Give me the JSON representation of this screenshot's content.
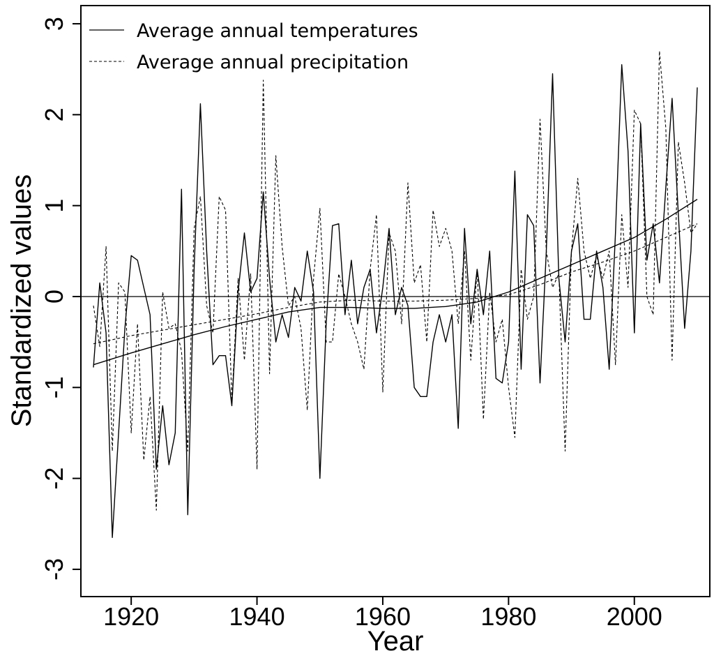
{
  "chart_data": {
    "type": "line",
    "xlabel": "Year",
    "ylabel": "Standardized values",
    "xlim": [
      1912,
      2012
    ],
    "ylim": [
      -3.3,
      3.2
    ],
    "x_ticks": [
      1920,
      1940,
      1960,
      1980,
      2000
    ],
    "x_tick_labels": [
      "1920",
      "1940",
      "1960",
      "1980",
      "2000"
    ],
    "y_ticks": [
      -3,
      -2,
      -1,
      0,
      1,
      2,
      3
    ],
    "y_tick_labels": [
      "-3",
      "-2",
      "-1",
      "0",
      "1",
      "2",
      "3"
    ],
    "y_tick_label_orientation": "vertical",
    "reference_line_y": 0,
    "grid": false,
    "legend": {
      "placement": "top-left",
      "entries": [
        {
          "label": "Average annual temperatures",
          "style": "solid"
        },
        {
          "label": "Average annual precipitation",
          "style": "dashed"
        }
      ]
    },
    "colors": {
      "line": "#000000",
      "background": "#ffffff"
    },
    "series": [
      {
        "name": "Average annual temperatures",
        "style": "solid",
        "x": [
          1914,
          1915,
          1916,
          1917,
          1918,
          1919,
          1920,
          1921,
          1922,
          1923,
          1924,
          1925,
          1926,
          1927,
          1928,
          1929,
          1930,
          1931,
          1932,
          1933,
          1934,
          1935,
          1936,
          1937,
          1938,
          1939,
          1940,
          1941,
          1942,
          1943,
          1944,
          1945,
          1946,
          1947,
          1948,
          1949,
          1950,
          1951,
          1952,
          1953,
          1954,
          1955,
          1956,
          1957,
          1958,
          1959,
          1960,
          1961,
          1962,
          1963,
          1964,
          1965,
          1966,
          1967,
          1968,
          1969,
          1970,
          1971,
          1972,
          1973,
          1974,
          1975,
          1976,
          1977,
          1978,
          1979,
          1980,
          1981,
          1982,
          1983,
          1984,
          1985,
          1986,
          1987,
          1988,
          1989,
          1990,
          1991,
          1992,
          1993,
          1994,
          1995,
          1996,
          1997,
          1998,
          1999,
          2000,
          2001,
          2002,
          2003,
          2004,
          2005,
          2006,
          2007,
          2008,
          2009,
          2010
        ],
        "y": [
          -0.78,
          0.15,
          -0.4,
          -2.65,
          -1.5,
          -0.35,
          0.45,
          0.4,
          0.1,
          -0.2,
          -1.9,
          -1.2,
          -1.85,
          -1.5,
          1.18,
          -2.4,
          0.3,
          2.12,
          0.5,
          -0.75,
          -0.65,
          -0.65,
          -1.2,
          0.05,
          0.7,
          0.05,
          0.2,
          1.15,
          0.2,
          -0.5,
          -0.2,
          -0.45,
          0.1,
          -0.05,
          0.5,
          0.05,
          -2.0,
          -0.3,
          0.78,
          0.8,
          -0.2,
          0.4,
          -0.3,
          0.1,
          0.3,
          -0.4,
          0.1,
          0.75,
          -0.2,
          0.1,
          -0.1,
          -1.0,
          -1.1,
          -1.1,
          -0.5,
          -0.2,
          -0.5,
          -0.2,
          -1.45,
          0.75,
          -0.3,
          0.3,
          -0.2,
          0.5,
          -0.9,
          -0.95,
          -0.5,
          1.38,
          -0.8,
          0.9,
          0.78,
          -0.95,
          0.5,
          2.45,
          0.2,
          -0.5,
          0.5,
          0.8,
          -0.25,
          -0.25,
          0.5,
          0.1,
          -0.8,
          0.7,
          2.55,
          1.6,
          -0.4,
          1.9,
          0.4,
          0.8,
          0.15,
          1.2,
          2.18,
          0.9,
          -0.35,
          0.5,
          2.3
        ]
      },
      {
        "name": "Average annual precipitation",
        "style": "dashed",
        "x": [
          1914,
          1915,
          1916,
          1917,
          1918,
          1919,
          1920,
          1921,
          1922,
          1923,
          1924,
          1925,
          1926,
          1927,
          1928,
          1929,
          1930,
          1931,
          1932,
          1933,
          1934,
          1935,
          1936,
          1937,
          1938,
          1939,
          1940,
          1941,
          1942,
          1943,
          1944,
          1945,
          1946,
          1947,
          1948,
          1949,
          1950,
          1951,
          1952,
          1953,
          1954,
          1955,
          1956,
          1957,
          1958,
          1959,
          1960,
          1961,
          1962,
          1963,
          1964,
          1965,
          1966,
          1967,
          1968,
          1969,
          1970,
          1971,
          1972,
          1973,
          1974,
          1975,
          1976,
          1977,
          1978,
          1979,
          1980,
          1981,
          1982,
          1983,
          1984,
          1985,
          1986,
          1987,
          1988,
          1989,
          1990,
          1991,
          1992,
          1993,
          1994,
          1995,
          1996,
          1997,
          1998,
          1999,
          2000,
          2001,
          2002,
          2003,
          2004,
          2005,
          2006,
          2007,
          2008,
          2009,
          2010
        ],
        "y": [
          -0.1,
          -0.55,
          0.55,
          -1.7,
          0.15,
          0.05,
          -1.5,
          -0.3,
          -1.8,
          -1.1,
          -2.35,
          0.05,
          -0.35,
          -0.3,
          -0.6,
          -1.7,
          0.75,
          1.1,
          -0.1,
          -0.4,
          1.1,
          0.95,
          -1.15,
          0.2,
          -0.7,
          0.25,
          -1.9,
          2.38,
          -0.85,
          1.55,
          0.55,
          -0.1,
          0.0,
          -0.35,
          -1.25,
          0.2,
          0.97,
          -0.5,
          -0.5,
          0.25,
          0.0,
          -0.3,
          -0.5,
          -0.8,
          0.3,
          0.9,
          -1.05,
          0.7,
          0.5,
          -0.3,
          1.25,
          0.15,
          0.35,
          -0.5,
          0.95,
          0.55,
          0.75,
          0.5,
          -0.3,
          0.5,
          -0.7,
          0.3,
          -1.35,
          0.05,
          -0.5,
          -0.25,
          -1.0,
          -1.55,
          0.3,
          -0.25,
          0.0,
          1.95,
          0.5,
          0.1,
          0.25,
          -1.7,
          0.5,
          1.3,
          0.5,
          0.2,
          0.45,
          0.2,
          0.5,
          -0.75,
          0.9,
          0.1,
          2.05,
          1.9,
          0.0,
          -0.2,
          2.7,
          1.85,
          -0.7,
          1.7,
          1.25,
          0.7,
          0.8
        ]
      },
      {
        "name": "",
        "style": "solid",
        "x": [
          1914,
          1920,
          1925,
          1930,
          1935,
          1940,
          1945,
          1950,
          1955,
          1960,
          1965,
          1970,
          1975,
          1980,
          1985,
          1990,
          1995,
          2000,
          2005,
          2010
        ],
        "y": [
          -0.75,
          -0.62,
          -0.52,
          -0.42,
          -0.33,
          -0.25,
          -0.17,
          -0.12,
          -0.12,
          -0.13,
          -0.13,
          -0.11,
          -0.06,
          0.05,
          0.2,
          0.35,
          0.5,
          0.65,
          0.85,
          1.07
        ]
      },
      {
        "name": "",
        "style": "dashed",
        "x": [
          1914,
          1920,
          1925,
          1930,
          1935,
          1940,
          1945,
          1950,
          1955,
          1960,
          1965,
          1970,
          1975,
          1980,
          1985,
          1990,
          1995,
          2000,
          2005,
          2010
        ],
        "y": [
          -0.52,
          -0.43,
          -0.37,
          -0.31,
          -0.25,
          -0.19,
          -0.12,
          -0.06,
          -0.04,
          -0.05,
          -0.05,
          -0.04,
          -0.02,
          0.02,
          0.13,
          0.27,
          0.38,
          0.5,
          0.65,
          0.8
        ]
      }
    ]
  }
}
